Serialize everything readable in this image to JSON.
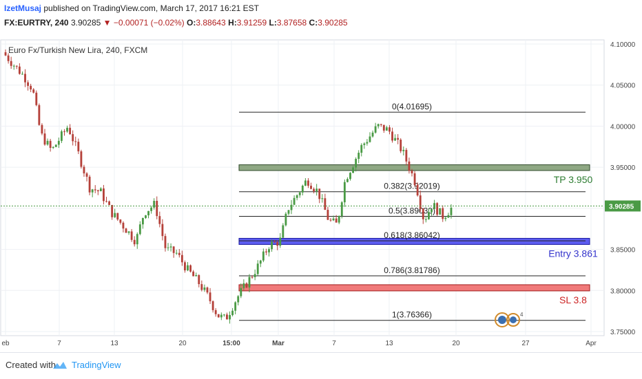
{
  "header": {
    "author": "IzetMusaj",
    "published": "published on TradingView.com, March 17, 2017 16:21 EST",
    "symbol": "FX:EURTRY, 240",
    "last": "3.90285",
    "change": "−0.00071 (−0.02%)",
    "open_label": "O:",
    "open": "3.88643",
    "high_label": "H:",
    "high": "3.91259",
    "low_label": "L:",
    "low": "3.87658",
    "close_label": "C:",
    "close": "3.90285"
  },
  "footer": {
    "created": "Created with",
    "brand": "TradingView"
  },
  "chart_data": {
    "type": "candlestick",
    "title": "Euro Fx/Turkish New Lira, 240, FXCM",
    "ylim": [
      3.745,
      4.105
    ],
    "y_ticks": [
      "4.10000",
      "4.05000",
      "4.00000",
      "3.95000",
      "3.90000",
      "3.85000",
      "3.80000",
      "3.75000"
    ],
    "x_ticks": [
      "eb",
      "7",
      "13",
      "20",
      "15:00",
      "Mar",
      "7",
      "13",
      "20",
      "27",
      "Apr"
    ],
    "last_price": "3.90285",
    "colors": {
      "up": "#4a9a45",
      "down": "#b5413a",
      "last": "#4a9a45"
    },
    "fib_levels": [
      {
        "label": "0(4.01695)",
        "price": 4.01695
      },
      {
        "label": "0.382(3.92019)",
        "price": 3.92019
      },
      {
        "label": "0.5(3.89030)",
        "price": 3.8903
      },
      {
        "label": "0.618(3.86042)",
        "price": 3.86042
      },
      {
        "label": "0.786(3.81786)",
        "price": 3.81786
      },
      {
        "label": "1(3.76366)",
        "price": 3.76366
      }
    ],
    "zones": [
      {
        "label": "TP 3.950",
        "top": 3.953,
        "bottom": 3.946,
        "fill": "#8fa884",
        "border": "#2f4a2a",
        "text_color": "#2e7d32"
      },
      {
        "label": "Entry 3.861",
        "top": 3.8635,
        "bottom": 3.856,
        "fill": "#5c5cf0",
        "border": "#1a1aa0",
        "text_color": "#3333cc"
      },
      {
        "label": "SL 3.8",
        "top": 3.807,
        "bottom": 3.7995,
        "fill": "#f07a7a",
        "border": "#a01a1a",
        "text_color": "#cc2222"
      }
    ],
    "close_path": [
      [
        0,
        4.09
      ],
      [
        0.02,
        4.075
      ],
      [
        0.04,
        4.06
      ],
      [
        0.055,
        4.045
      ],
      [
        0.07,
        3.99
      ],
      [
        0.09,
        3.97
      ],
      [
        0.105,
        3.985
      ],
      [
        0.12,
        4.0
      ],
      [
        0.14,
        3.965
      ],
      [
        0.16,
        3.925
      ],
      [
        0.18,
        3.92
      ],
      [
        0.2,
        3.895
      ],
      [
        0.22,
        3.88
      ],
      [
        0.245,
        3.86
      ],
      [
        0.26,
        3.895
      ],
      [
        0.28,
        3.905
      ],
      [
        0.3,
        3.85
      ],
      [
        0.32,
        3.845
      ],
      [
        0.34,
        3.825
      ],
      [
        0.36,
        3.81
      ],
      [
        0.38,
        3.79
      ],
      [
        0.395,
        3.77
      ],
      [
        0.41,
        3.765
      ],
      [
        0.43,
        3.79
      ],
      [
        0.45,
        3.81
      ],
      [
        0.47,
        3.83
      ],
      [
        0.49,
        3.855
      ],
      [
        0.51,
        3.86
      ],
      [
        0.525,
        3.9
      ],
      [
        0.545,
        3.92
      ],
      [
        0.56,
        3.935
      ],
      [
        0.58,
        3.92
      ],
      [
        0.6,
        3.885
      ],
      [
        0.615,
        3.88
      ],
      [
        0.63,
        3.935
      ],
      [
        0.66,
        3.975
      ],
      [
        0.69,
        4.0
      ],
      [
        0.71,
        3.995
      ],
      [
        0.735,
        3.97
      ],
      [
        0.76,
        3.93
      ],
      [
        0.775,
        3.885
      ],
      [
        0.79,
        3.905
      ],
      [
        0.81,
        3.89
      ],
      [
        0.825,
        3.9
      ]
    ]
  }
}
